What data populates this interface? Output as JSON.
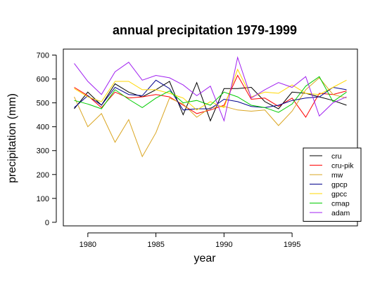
{
  "chart_data": {
    "type": "line",
    "title": "annual precipitation 1979-1999",
    "xlabel": "year",
    "ylabel": "precipitation (mm)",
    "x": [
      1979,
      1980,
      1981,
      1982,
      1983,
      1984,
      1985,
      1986,
      1987,
      1988,
      1989,
      1990,
      1991,
      1992,
      1993,
      1994,
      1995,
      1996,
      1997,
      1998,
      1999
    ],
    "xlim": [
      1978.2,
      1999.8
    ],
    "ylim": [
      -15,
      725
    ],
    "xticks": [
      1980,
      1985,
      1990,
      1995
    ],
    "yticks": [
      0,
      100,
      200,
      300,
      400,
      500,
      600,
      700
    ],
    "grid": false,
    "legend_position": "bottom-right",
    "series": [
      {
        "name": "cru",
        "color": "#000000",
        "values": [
          475,
          545,
          490,
          580,
          545,
          525,
          555,
          590,
          450,
          585,
          425,
          560,
          560,
          565,
          505,
          475,
          545,
          540,
          525,
          510,
          490
        ]
      },
      {
        "name": "cru-pik",
        "color": "#ff0000",
        "values": [
          565,
          530,
          480,
          545,
          520,
          525,
          535,
          525,
          490,
          455,
          470,
          490,
          615,
          515,
          520,
          485,
          520,
          440,
          540,
          535,
          550
        ]
      },
      {
        "name": "mw",
        "color": "#daa520",
        "values": [
          525,
          400,
          455,
          335,
          430,
          275,
          375,
          520,
          495,
          440,
          480,
          485,
          470,
          465,
          470,
          405,
          465,
          555,
          605,
          535,
          520
        ]
      },
      {
        "name": "gpcp",
        "color": "#00008b",
        "values": [
          480,
          530,
          490,
          565,
          535,
          530,
          595,
          560,
          470,
          475,
          475,
          515,
          505,
          485,
          480,
          490,
          510,
          520,
          525,
          565,
          555
        ]
      },
      {
        "name": "gpcc",
        "color": "#ffd700",
        "values": [
          560,
          525,
          505,
          590,
          590,
          555,
          555,
          540,
          520,
          470,
          505,
          480,
          640,
          525,
          545,
          540,
          575,
          540,
          535,
          565,
          595
        ]
      },
      {
        "name": "cmap",
        "color": "#00cc00",
        "values": [
          510,
          495,
          475,
          555,
          515,
          480,
          520,
          550,
          500,
          510,
          490,
          545,
          525,
          490,
          480,
          460,
          495,
          570,
          610,
          505,
          545
        ]
      },
      {
        "name": "adam",
        "color": "#a020f0",
        "values": [
          665,
          590,
          535,
          630,
          670,
          595,
          615,
          605,
          575,
          530,
          570,
          425,
          690,
          520,
          555,
          585,
          565,
          610,
          445,
          500,
          525
        ]
      }
    ]
  }
}
